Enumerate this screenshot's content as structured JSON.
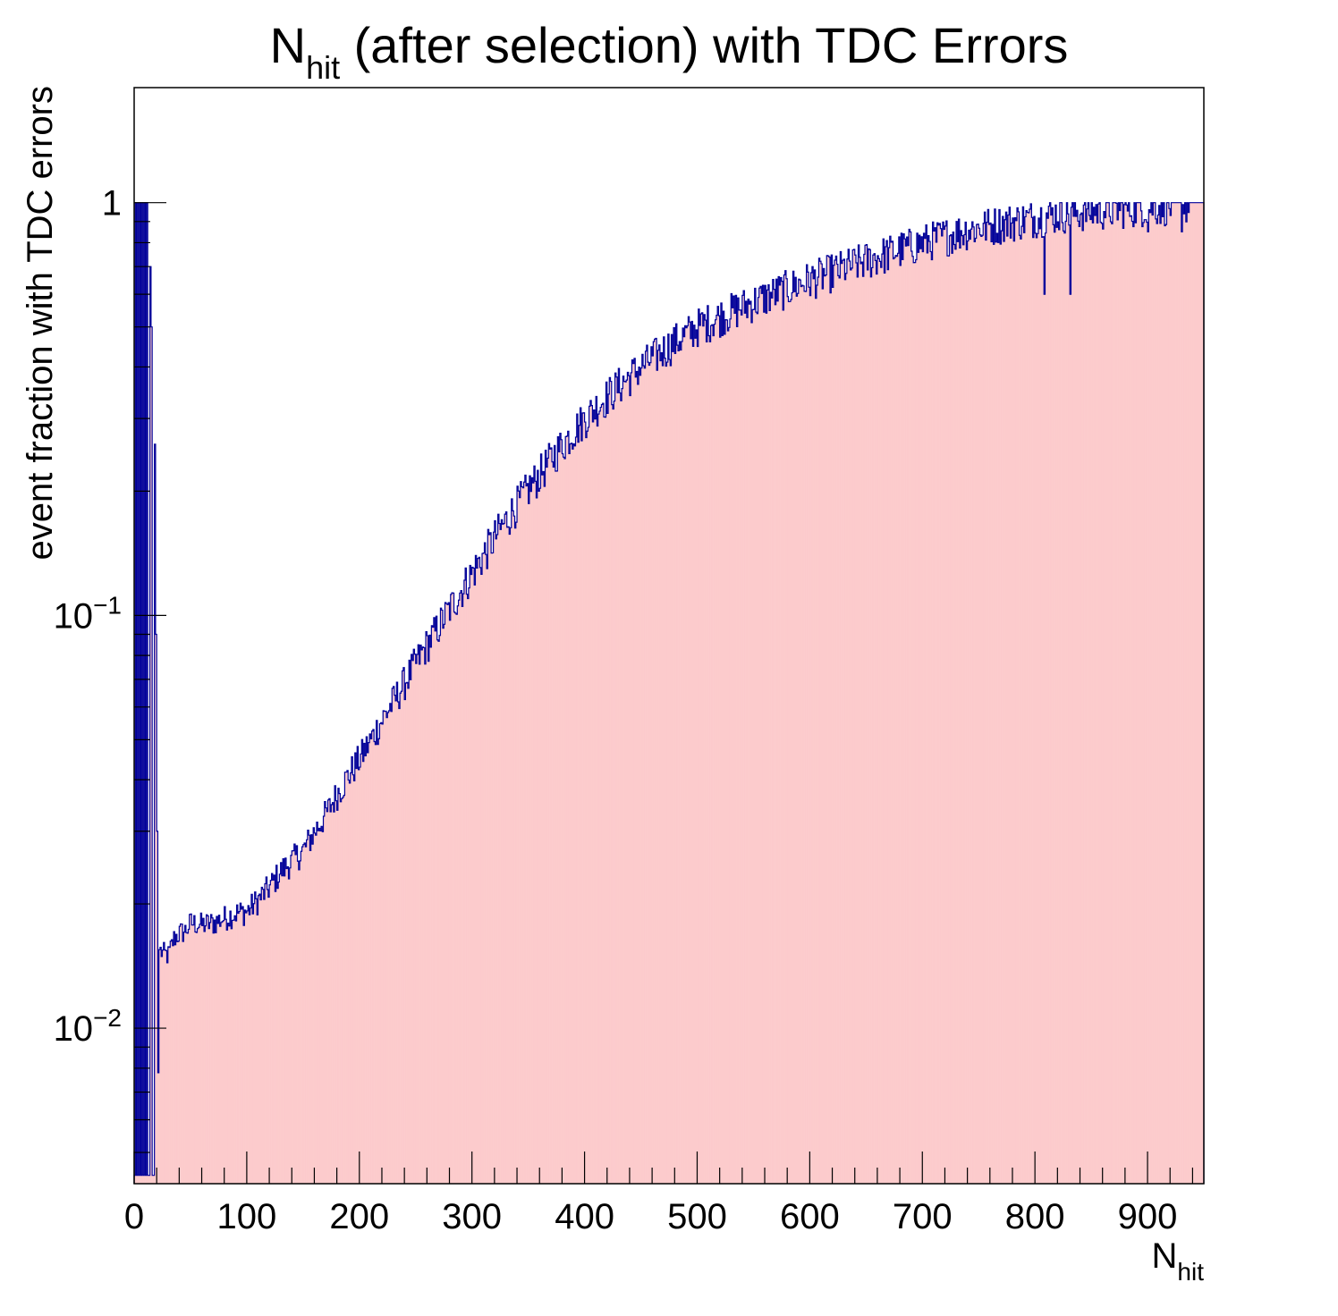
{
  "chart_data": {
    "type": "bar",
    "title": {
      "main": "N",
      "sub": "hit",
      "rest": " (after selection) with TDC Errors"
    },
    "xlabel": {
      "main": "N",
      "sub": "hit"
    },
    "ylabel": "event fraction with TDC errors",
    "xlim": [
      0,
      950
    ],
    "ylim": [
      0.0042,
      1.9
    ],
    "y_scale": "log",
    "x_ticks": [
      "0",
      "100",
      "200",
      "300",
      "400",
      "500",
      "600",
      "700",
      "800",
      "900"
    ],
    "y_ticks": [
      {
        "value": 1,
        "label": "1"
      },
      {
        "value": 0.1,
        "label": "10",
        "exp": "−1"
      },
      {
        "value": 0.01,
        "label": "10",
        "exp": "−2"
      }
    ],
    "bin_width": 1,
    "fill_color": "#fccbcc",
    "line_color": "#000099",
    "points": [
      [
        0,
        0.0044
      ],
      [
        1,
        1.0
      ],
      [
        2,
        0.0044
      ],
      [
        3,
        1.0
      ],
      [
        4,
        0.0044
      ],
      [
        5,
        1.0
      ],
      [
        6,
        0.0044
      ],
      [
        7,
        1.0
      ],
      [
        8,
        0.0044
      ],
      [
        9,
        1.0
      ],
      [
        10,
        0.0044
      ],
      [
        11,
        1.0
      ],
      [
        12,
        0.0044
      ],
      [
        13,
        0.0044
      ],
      [
        14,
        0.7
      ],
      [
        15,
        0.5
      ],
      [
        16,
        0.0044
      ],
      [
        17,
        0.0044
      ],
      [
        18,
        0.26
      ],
      [
        19,
        0.09
      ],
      [
        20,
        0.03
      ],
      [
        21,
        0.0078
      ],
      [
        22,
        0.0155
      ],
      [
        25,
        0.0152
      ],
      [
        30,
        0.015
      ],
      [
        35,
        0.0165
      ],
      [
        40,
        0.017
      ],
      [
        45,
        0.0172
      ],
      [
        50,
        0.018
      ],
      [
        60,
        0.0178
      ],
      [
        70,
        0.018
      ],
      [
        80,
        0.0185
      ],
      [
        90,
        0.019
      ],
      [
        100,
        0.0192
      ],
      [
        110,
        0.0205
      ],
      [
        120,
        0.022
      ],
      [
        130,
        0.024
      ],
      [
        140,
        0.0255
      ],
      [
        150,
        0.027
      ],
      [
        160,
        0.03
      ],
      [
        170,
        0.033
      ],
      [
        180,
        0.037
      ],
      [
        190,
        0.041
      ],
      [
        200,
        0.045
      ],
      [
        210,
        0.05
      ],
      [
        220,
        0.056
      ],
      [
        230,
        0.062
      ],
      [
        240,
        0.069
      ],
      [
        250,
        0.077
      ],
      [
        260,
        0.085
      ],
      [
        270,
        0.094
      ],
      [
        280,
        0.104
      ],
      [
        290,
        0.115
      ],
      [
        300,
        0.127
      ],
      [
        310,
        0.14
      ],
      [
        320,
        0.155
      ],
      [
        330,
        0.17
      ],
      [
        340,
        0.186
      ],
      [
        350,
        0.203
      ],
      [
        360,
        0.22
      ],
      [
        370,
        0.24
      ],
      [
        380,
        0.26
      ],
      [
        390,
        0.28
      ],
      [
        400,
        0.3
      ],
      [
        410,
        0.32
      ],
      [
        420,
        0.34
      ],
      [
        430,
        0.36
      ],
      [
        440,
        0.38
      ],
      [
        450,
        0.4
      ],
      [
        460,
        0.42
      ],
      [
        470,
        0.44
      ],
      [
        480,
        0.46
      ],
      [
        490,
        0.48
      ],
      [
        500,
        0.5
      ],
      [
        520,
        0.53
      ],
      [
        540,
        0.56
      ],
      [
        560,
        0.59
      ],
      [
        580,
        0.62
      ],
      [
        600,
        0.65
      ],
      [
        620,
        0.68
      ],
      [
        640,
        0.71
      ],
      [
        660,
        0.74
      ],
      [
        680,
        0.77
      ],
      [
        700,
        0.8
      ],
      [
        720,
        0.83
      ],
      [
        740,
        0.86
      ],
      [
        760,
        0.88
      ],
      [
        780,
        0.9
      ],
      [
        800,
        0.92
      ],
      [
        820,
        0.94
      ],
      [
        840,
        0.95
      ],
      [
        860,
        0.96
      ],
      [
        880,
        0.97
      ],
      [
        900,
        0.98
      ],
      [
        920,
        0.985
      ],
      [
        935,
        0.99
      ],
      [
        937,
        1.0
      ],
      [
        950,
        1.0
      ]
    ],
    "dips": [
      {
        "x": 21,
        "value": 0.0078
      },
      {
        "x": 808,
        "value": 0.6
      },
      {
        "x": 831,
        "value": 0.6
      },
      {
        "x": 900,
        "value": 0.85
      },
      {
        "x": 930,
        "value": 0.85
      }
    ],
    "grid": false,
    "legend": "none"
  }
}
